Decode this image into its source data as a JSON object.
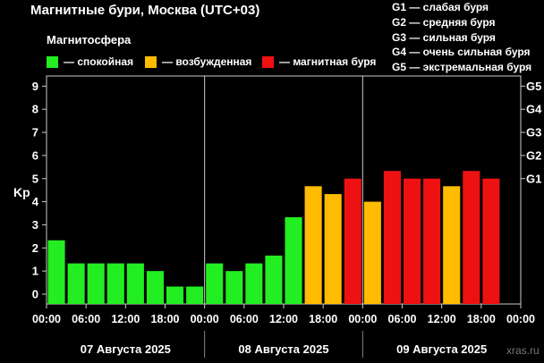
{
  "title": "Магнитные бури, Москва (UTC+03)",
  "magnetosphere_title": "Магнитосфера",
  "legend": [
    {
      "label": "— спокойная",
      "color": "#22ee22"
    },
    {
      "label": "— возбужденная",
      "color": "#ffbb00"
    },
    {
      "label": "— магнитная буря",
      "color": "#ee1111"
    }
  ],
  "storm_levels": [
    {
      "label": "G1 — слабая буря"
    },
    {
      "label": "G2 — средняя буря"
    },
    {
      "label": "G3 — сильная буря"
    },
    {
      "label": "G4 — очень сильная буря"
    },
    {
      "label": "G5 — экстремальная буря"
    }
  ],
  "watermark": "xras.ru",
  "chart_data": {
    "type": "bar",
    "ylabel": "Kp",
    "ylim": [
      0,
      9
    ],
    "y_ticks": [
      "0",
      "1",
      "2",
      "3",
      "4",
      "5",
      "6",
      "7",
      "8",
      "9"
    ],
    "right_ticks": [
      {
        "label": "G1",
        "value": 5
      },
      {
        "label": "G2",
        "value": 6
      },
      {
        "label": "G3",
        "value": 7
      },
      {
        "label": "G4",
        "value": 8
      },
      {
        "label": "G5",
        "value": 9
      }
    ],
    "x_ticks": [
      "00:00",
      "06:00",
      "12:00",
      "18:00",
      "00:00",
      "06:00",
      "12:00",
      "18:00",
      "00:00",
      "06:00",
      "12:00",
      "18:00",
      "00:00"
    ],
    "days": [
      "07 Августа 2025",
      "08 Августа 2025",
      "09 Августа 2025"
    ],
    "colors": {
      "quiet": "#22ee22",
      "active": "#ffbb00",
      "storm": "#ee1111"
    },
    "values": [
      2.33,
      1.33,
      1.33,
      1.33,
      1.33,
      1.0,
      0.33,
      0.33,
      1.33,
      1.0,
      1.33,
      1.67,
      3.33,
      4.67,
      4.33,
      5.0,
      4.0,
      5.33,
      5.0,
      5.0,
      4.67,
      5.33,
      5.0
    ],
    "levels": [
      "quiet",
      "quiet",
      "quiet",
      "quiet",
      "quiet",
      "quiet",
      "quiet",
      "quiet",
      "quiet",
      "quiet",
      "quiet",
      "quiet",
      "quiet",
      "active",
      "active",
      "storm",
      "active",
      "storm",
      "storm",
      "storm",
      "active",
      "storm",
      "storm"
    ]
  }
}
